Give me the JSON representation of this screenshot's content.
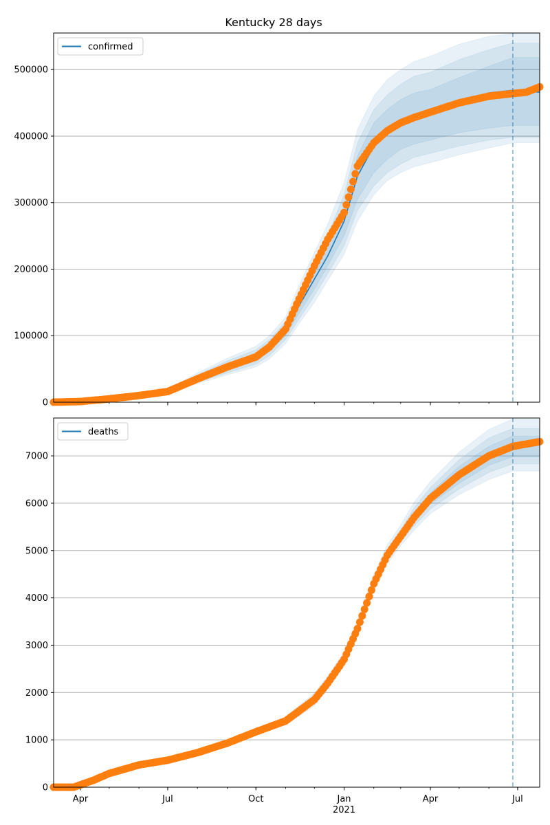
{
  "title": "Kentucky 28 days",
  "colors": {
    "model_line": "#1f77b4",
    "observed": "#ff7f0e",
    "band": "#1f77b4",
    "cutoff": "#1f77b4",
    "grid": "#b0b0b0"
  },
  "x_axis": {
    "ticks": [
      {
        "date": "2020-04-01",
        "label": "Apr",
        "sublabel": ""
      },
      {
        "date": "2020-07-01",
        "label": "Jul",
        "sublabel": ""
      },
      {
        "date": "2020-10-01",
        "label": "Oct",
        "sublabel": ""
      },
      {
        "date": "2021-01-01",
        "label": "Jan",
        "sublabel": "2021"
      },
      {
        "date": "2021-04-01",
        "label": "Apr",
        "sublabel": ""
      },
      {
        "date": "2021-07-01",
        "label": "Jul",
        "sublabel": ""
      }
    ],
    "range": [
      "2020-03-04",
      "2021-07-24"
    ],
    "forecast_cutoff": "2021-06-26"
  },
  "chart_data": [
    {
      "type": "line",
      "legend": "confirmed",
      "legend_position": "top-left",
      "grid": "horizontal",
      "ylim": [
        0,
        555000
      ],
      "yticks": [
        0,
        100000,
        200000,
        300000,
        400000,
        500000
      ],
      "ytick_labels": [
        "0",
        "100000",
        "200000",
        "300000",
        "400000",
        "500000"
      ],
      "series": [
        {
          "name": "confirmed",
          "x": [
            "2020-03-04",
            "2020-04-01",
            "2020-05-01",
            "2020-06-01",
            "2020-07-01",
            "2020-08-01",
            "2020-09-01",
            "2020-10-01",
            "2020-10-15",
            "2020-11-01",
            "2020-11-15",
            "2020-12-01",
            "2020-12-15",
            "2021-01-01",
            "2021-01-15",
            "2021-02-01",
            "2021-02-15",
            "2021-03-01",
            "2021-03-15",
            "2021-04-01",
            "2021-05-01",
            "2021-06-01",
            "2021-06-26",
            "2021-07-24"
          ],
          "y": [
            0,
            1000,
            5000,
            10000,
            16000,
            35000,
            53000,
            68000,
            82000,
            107000,
            145000,
            185000,
            220000,
            272000,
            340000,
            385000,
            405000,
            420000,
            430000,
            437000,
            452000,
            465000,
            469000,
            466000
          ],
          "bands": [
            {
              "lower": [
                0,
                1000,
                5000,
                10000,
                15000,
                32000,
                48000,
                62000,
                76000,
                100000,
                134000,
                170000,
                205000,
                250000,
                305000,
                345000,
                365000,
                380000,
                388000,
                394000,
                405000,
                412000,
                416000,
                416000
              ],
              "upper": [
                0,
                1000,
                5000,
                10000,
                17000,
                38000,
                58000,
                74000,
                88000,
                114000,
                155000,
                200000,
                238000,
                295000,
                370000,
                420000,
                440000,
                455000,
                465000,
                470000,
                488000,
                505000,
                518000,
                518000
              ]
            },
            {
              "lower": [
                0,
                1000,
                5000,
                10000,
                14000,
                30000,
                44000,
                57000,
                70000,
                94000,
                125000,
                160000,
                193000,
                235000,
                288000,
                325000,
                345000,
                358000,
                368000,
                374000,
                385000,
                394000,
                398000,
                398000
              ],
              "upper": [
                0,
                1000,
                5000,
                10000,
                18000,
                41000,
                62000,
                79000,
                94000,
                121000,
                165000,
                212000,
                252000,
                312000,
                390000,
                440000,
                462000,
                478000,
                490000,
                496000,
                515000,
                530000,
                540000,
                540000
              ]
            },
            {
              "lower": [
                0,
                1000,
                5000,
                10000,
                13000,
                28000,
                41000,
                53000,
                65000,
                88000,
                118000,
                150000,
                183000,
                222000,
                272000,
                312000,
                333000,
                345000,
                354000,
                360000,
                372000,
                382000,
                390000,
                390000
              ],
              "upper": [
                0,
                1000,
                5000,
                10000,
                19000,
                44000,
                66000,
                84000,
                100000,
                128000,
                176000,
                225000,
                268000,
                330000,
                410000,
                460000,
                485000,
                500000,
                512000,
                520000,
                538000,
                550000,
                554000,
                554000
              ]
            }
          ]
        }
      ],
      "observed": {
        "x": [
          "2020-03-04",
          "2020-04-01",
          "2020-05-01",
          "2020-06-01",
          "2020-07-01",
          "2020-08-01",
          "2020-09-01",
          "2020-10-01",
          "2020-10-15",
          "2020-11-01",
          "2020-11-15",
          "2020-12-01",
          "2020-12-15",
          "2021-01-01",
          "2021-01-15",
          "2021-02-01",
          "2021-02-15",
          "2021-03-01",
          "2021-03-15",
          "2021-04-01",
          "2021-05-01",
          "2021-06-01",
          "2021-06-26",
          "2021-07-10",
          "2021-07-24"
        ],
        "y": [
          0,
          1000,
          5000,
          10000,
          16000,
          35000,
          53000,
          68000,
          83000,
          110000,
          155000,
          205000,
          245000,
          285000,
          355000,
          390000,
          408000,
          420000,
          428000,
          436000,
          450000,
          460000,
          464000,
          466000,
          474000
        ]
      }
    },
    {
      "type": "line",
      "legend": "deaths",
      "legend_position": "top-left",
      "grid": "horizontal",
      "ylim": [
        0,
        7800
      ],
      "yticks": [
        0,
        1000,
        2000,
        3000,
        4000,
        5000,
        6000,
        7000
      ],
      "ytick_labels": [
        "0",
        "1000",
        "2000",
        "3000",
        "4000",
        "5000",
        "6000",
        "7000"
      ],
      "series": [
        {
          "name": "deaths",
          "x": [
            "2020-03-04",
            "2020-03-25",
            "2020-04-15",
            "2020-05-01",
            "2020-06-01",
            "2020-07-01",
            "2020-08-01",
            "2020-09-01",
            "2020-10-01",
            "2020-11-01",
            "2020-12-01",
            "2020-12-15",
            "2021-01-01",
            "2021-01-15",
            "2021-02-01",
            "2021-02-15",
            "2021-03-01",
            "2021-03-15",
            "2021-04-01",
            "2021-05-01",
            "2021-06-01",
            "2021-06-26",
            "2021-07-24"
          ],
          "y": [
            0,
            0,
            150,
            290,
            470,
            570,
            730,
            930,
            1170,
            1400,
            1850,
            2200,
            2700,
            3350,
            4300,
            4900,
            5300,
            5700,
            6100,
            6600,
            7000,
            7200,
            7300
          ],
          "bands": [
            {
              "lower": [
                0,
                0,
                150,
                290,
                470,
                570,
                730,
                920,
                1150,
                1370,
                1800,
                2150,
                2650,
                3300,
                4250,
                4850,
                5250,
                5600,
                5980,
                6420,
                6800,
                6980,
                6980
              ],
              "upper": [
                0,
                0,
                150,
                290,
                470,
                570,
                730,
                940,
                1190,
                1430,
                1900,
                2250,
                2750,
                3400,
                4350,
                4950,
                5350,
                5800,
                6220,
                6780,
                7200,
                7420,
                7420
              ]
            },
            {
              "lower": [
                0,
                0,
                150,
                290,
                470,
                570,
                730,
                910,
                1130,
                1340,
                1760,
                2110,
                2600,
                3250,
                4200,
                4790,
                5180,
                5520,
                5880,
                6300,
                6650,
                6830,
                6830
              ],
              "upper": [
                0,
                0,
                150,
                290,
                470,
                570,
                730,
                950,
                1210,
                1460,
                1940,
                2300,
                2800,
                3460,
                4420,
                5030,
                5440,
                5900,
                6330,
                6920,
                7380,
                7580,
                7580
              ]
            },
            {
              "lower": [
                0,
                0,
                150,
                290,
                470,
                570,
                730,
                900,
                1110,
                1310,
                1720,
                2070,
                2550,
                3190,
                4130,
                4720,
                5100,
                5430,
                5780,
                6180,
                6500,
                6680,
                6680
              ],
              "upper": [
                0,
                0,
                150,
                290,
                470,
                570,
                730,
                960,
                1230,
                1490,
                1990,
                2350,
                2860,
                3530,
                4500,
                5120,
                5540,
                6020,
                6460,
                7080,
                7560,
                7780,
                7780
              ]
            }
          ]
        }
      ],
      "observed": {
        "x": [
          "2020-03-04",
          "2020-03-25",
          "2020-04-15",
          "2020-05-01",
          "2020-06-01",
          "2020-07-01",
          "2020-08-01",
          "2020-09-01",
          "2020-10-01",
          "2020-11-01",
          "2020-12-01",
          "2020-12-15",
          "2021-01-01",
          "2021-01-15",
          "2021-02-01",
          "2021-02-15",
          "2021-03-01",
          "2021-03-15",
          "2021-04-01",
          "2021-05-01",
          "2021-06-01",
          "2021-06-26",
          "2021-07-10",
          "2021-07-24"
        ],
        "y": [
          0,
          0,
          150,
          290,
          470,
          570,
          730,
          930,
          1170,
          1400,
          1850,
          2200,
          2700,
          3350,
          4300,
          4900,
          5300,
          5700,
          6100,
          6600,
          7000,
          7200,
          7250,
          7300
        ]
      }
    }
  ]
}
